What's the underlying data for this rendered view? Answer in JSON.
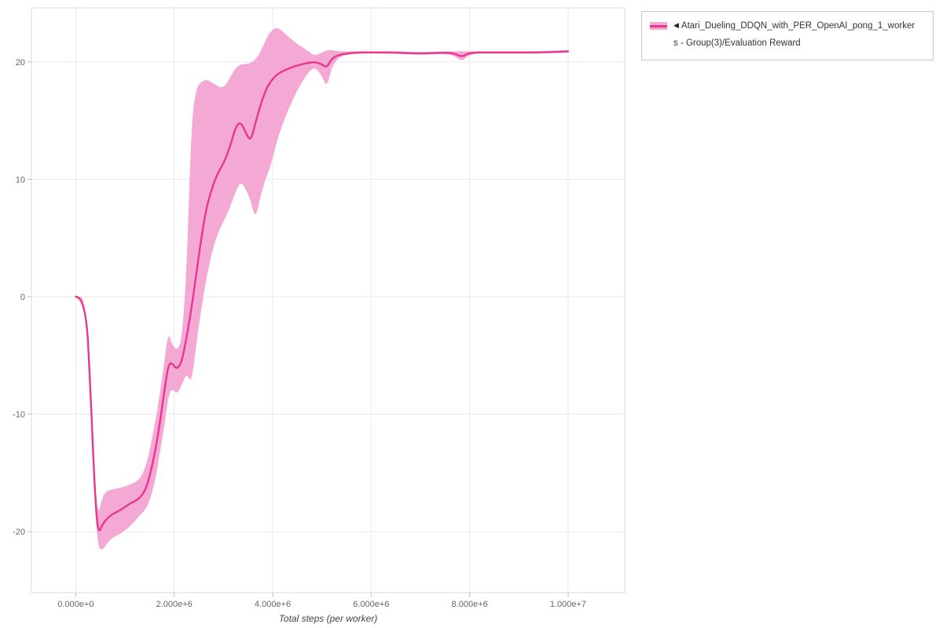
{
  "page": {
    "background": "#FFFFFF"
  },
  "chart_data": {
    "type": "line",
    "title": "",
    "xlabel": "Total steps (per worker)",
    "ylabel": "",
    "xlim": [
      -900000,
      11150000
    ],
    "ylim": [
      -25.2,
      24.6
    ],
    "grid": true,
    "legend_position": "outside-top-right",
    "x_ticks": [
      {
        "value": 0,
        "label": "0.000e+0"
      },
      {
        "value": 2000000,
        "label": "2.000e+6"
      },
      {
        "value": 4000000,
        "label": "4.000e+6"
      },
      {
        "value": 6000000,
        "label": "6.000e+6"
      },
      {
        "value": 8000000,
        "label": "8.000e+6"
      },
      {
        "value": 10000000,
        "label": "1.000e+7"
      }
    ],
    "y_ticks": [
      {
        "value": -20,
        "label": "-20"
      },
      {
        "value": -10,
        "label": "-10"
      },
      {
        "value": 0,
        "label": "0"
      },
      {
        "value": 10,
        "label": "10"
      },
      {
        "value": 20,
        "label": "20"
      }
    ],
    "colors": {
      "grid": "#E9E9E9",
      "axis_border": "#DADADA",
      "tick_mark": "#BBBBBB",
      "tick_text": "#666666",
      "axis_label_text": "#444444"
    },
    "series": [
      {
        "name": "Atari_Dueling_DDQN_with_PER_OpenAI_pong_1_workers - Group(3)/Evaluation Reward",
        "color": "#E8368F",
        "band_color": "#F4A9D5",
        "x": [
          0,
          200000,
          300000,
          380000,
          450000,
          550000,
          700000,
          900000,
          1100000,
          1300000,
          1450000,
          1600000,
          1700000,
          1800000,
          1880000,
          1950000,
          2050000,
          2150000,
          2250000,
          2350000,
          2450000,
          2550000,
          2650000,
          2750000,
          2850000,
          2950000,
          3050000,
          3150000,
          3250000,
          3350000,
          3450000,
          3550000,
          3650000,
          3750000,
          3850000,
          3950000,
          4100000,
          4300000,
          4500000,
          4700000,
          4850000,
          5000000,
          5100000,
          5200000,
          5350000,
          5500000,
          5700000,
          6000000,
          6500000,
          7000000,
          7500000,
          7700000,
          7850000,
          8000000,
          8500000,
          9000000,
          9500000,
          10000000
        ],
        "y": [
          0,
          0,
          -8,
          -16,
          -20.3,
          -19.3,
          -18.6,
          -18.2,
          -17.6,
          -17.2,
          -16.2,
          -13.5,
          -11,
          -8,
          -5.8,
          -5.6,
          -6.2,
          -5.6,
          -3.5,
          -1,
          2,
          5,
          7.5,
          9,
          10.2,
          11,
          11.8,
          13,
          14.5,
          14.9,
          14,
          13.2,
          14.8,
          16.3,
          17.5,
          18.3,
          19.0,
          19.4,
          19.7,
          19.9,
          20.0,
          19.8,
          19.5,
          20.3,
          20.6,
          20.7,
          20.8,
          20.8,
          20.8,
          20.7,
          20.8,
          20.7,
          20.4,
          20.8,
          20.8,
          20.8,
          20.8,
          20.9
        ],
        "y_lower": [
          0,
          0,
          -8.5,
          -17,
          -21.4,
          -21.6,
          -20.6,
          -20.2,
          -19.6,
          -18.6,
          -18.0,
          -16.0,
          -13.5,
          -11,
          -8.5,
          -7.8,
          -8.3,
          -7.6,
          -6.5,
          -7.4,
          -4,
          -1,
          1.5,
          3.5,
          5,
          6,
          6.8,
          7.8,
          9,
          9.8,
          9.2,
          8.2,
          6.6,
          8.5,
          10,
          11,
          13.5,
          15.8,
          17.6,
          19.0,
          19.6,
          18.8,
          17.8,
          19.6,
          20.4,
          20.6,
          20.7,
          20.7,
          20.7,
          20.6,
          20.7,
          20.5,
          20.0,
          20.7,
          20.7,
          20.7,
          20.7,
          20.8
        ],
        "y_upper": [
          0,
          0,
          -7.5,
          -15,
          -18.8,
          -16.8,
          -16.4,
          -16.3,
          -16.0,
          -15.6,
          -14.2,
          -11.0,
          -8.5,
          -5.5,
          -3.0,
          -4.0,
          -4.6,
          -3.8,
          2,
          15,
          17.8,
          18.3,
          18.5,
          18.3,
          18.0,
          17.8,
          18.0,
          18.8,
          19.5,
          19.8,
          19.8,
          19.9,
          20.2,
          20.8,
          21.8,
          22.6,
          23.0,
          22.2,
          21.5,
          21.0,
          20.5,
          20.8,
          21.0,
          21.0,
          20.9,
          20.9,
          20.9,
          20.9,
          20.9,
          20.8,
          20.9,
          20.9,
          20.9,
          20.9,
          20.9,
          20.9,
          20.9,
          21.0
        ]
      }
    ]
  },
  "legend": {
    "marker_icon": "◀",
    "label_line1": "Atari_Dueling_DDQN_with_PER_OpenAI_pong_1_worker",
    "label_line2": "s - Group(3)/Evaluation Reward",
    "series_color": "#E8368F",
    "band_color": "#F4A9D5"
  }
}
